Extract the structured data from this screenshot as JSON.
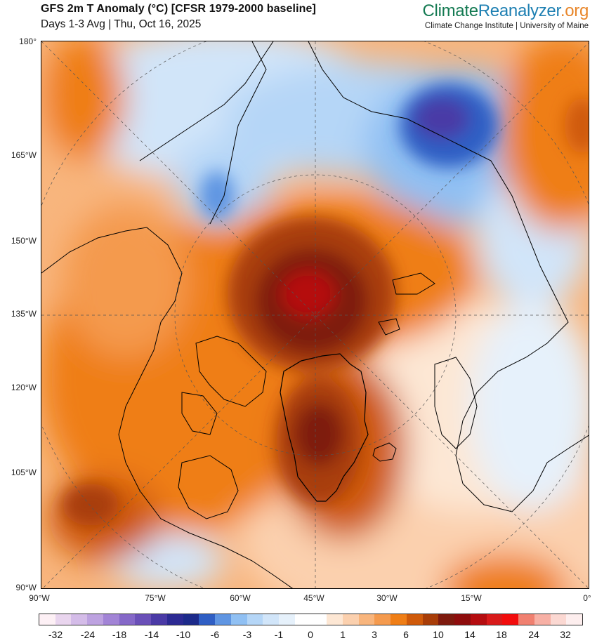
{
  "header": {
    "title": "GFS 2m T Anomaly (°C) [CFSR 1979-2000 baseline]",
    "subtitle": "Days 1-3 Avg | Thu, Oct 16, 2025"
  },
  "brand": {
    "logo_part1": "Climate",
    "logo_part2": "Reanalyzer",
    "logo_part3": ".org",
    "tagline": "Climate Change Institute | University of Maine",
    "colors": {
      "green": "#147a52",
      "blue": "#1d7fb2",
      "orange": "#e8862a"
    }
  },
  "map": {
    "projection": "north-polar-stereographic",
    "region": "Arctic / North Atlantic / Greenland",
    "left_axis_labels": [
      "180°",
      "165°W",
      "150°W",
      "135°W",
      "120°W",
      "105°W",
      "90°W"
    ],
    "bottom_axis_labels": [
      "90°W",
      "75°W",
      "60°W",
      "45°W",
      "30°W",
      "15°W",
      "0°"
    ]
  },
  "colorbar": {
    "colors": [
      "#fdf0f5",
      "#e9d5ee",
      "#d4bce8",
      "#bda2e0",
      "#a284d6",
      "#8568c8",
      "#6a50b8",
      "#4a3aa6",
      "#2c2a93",
      "#1c2a8a",
      "#2f5ec4",
      "#5f95e2",
      "#90c0f3",
      "#b5d6f7",
      "#d1e5f9",
      "#e6f1fb",
      "#ffffff",
      "#ffffff",
      "#fde7d4",
      "#fbd0ae",
      "#f8b57d",
      "#f49a4e",
      "#ef7e16",
      "#cf5a0a",
      "#a83d08",
      "#7e1a0e",
      "#8e0d0d",
      "#b50d10",
      "#d81a1a",
      "#f20c0c",
      "#f08070",
      "#f7b0a5",
      "#fbd8d2",
      "#fdeeee"
    ],
    "labels": [
      "-32",
      "-24",
      "-18",
      "-14",
      "-10",
      "-6",
      "-3",
      "-1",
      "0",
      "1",
      "3",
      "6",
      "10",
      "14",
      "18",
      "24",
      "32"
    ]
  }
}
